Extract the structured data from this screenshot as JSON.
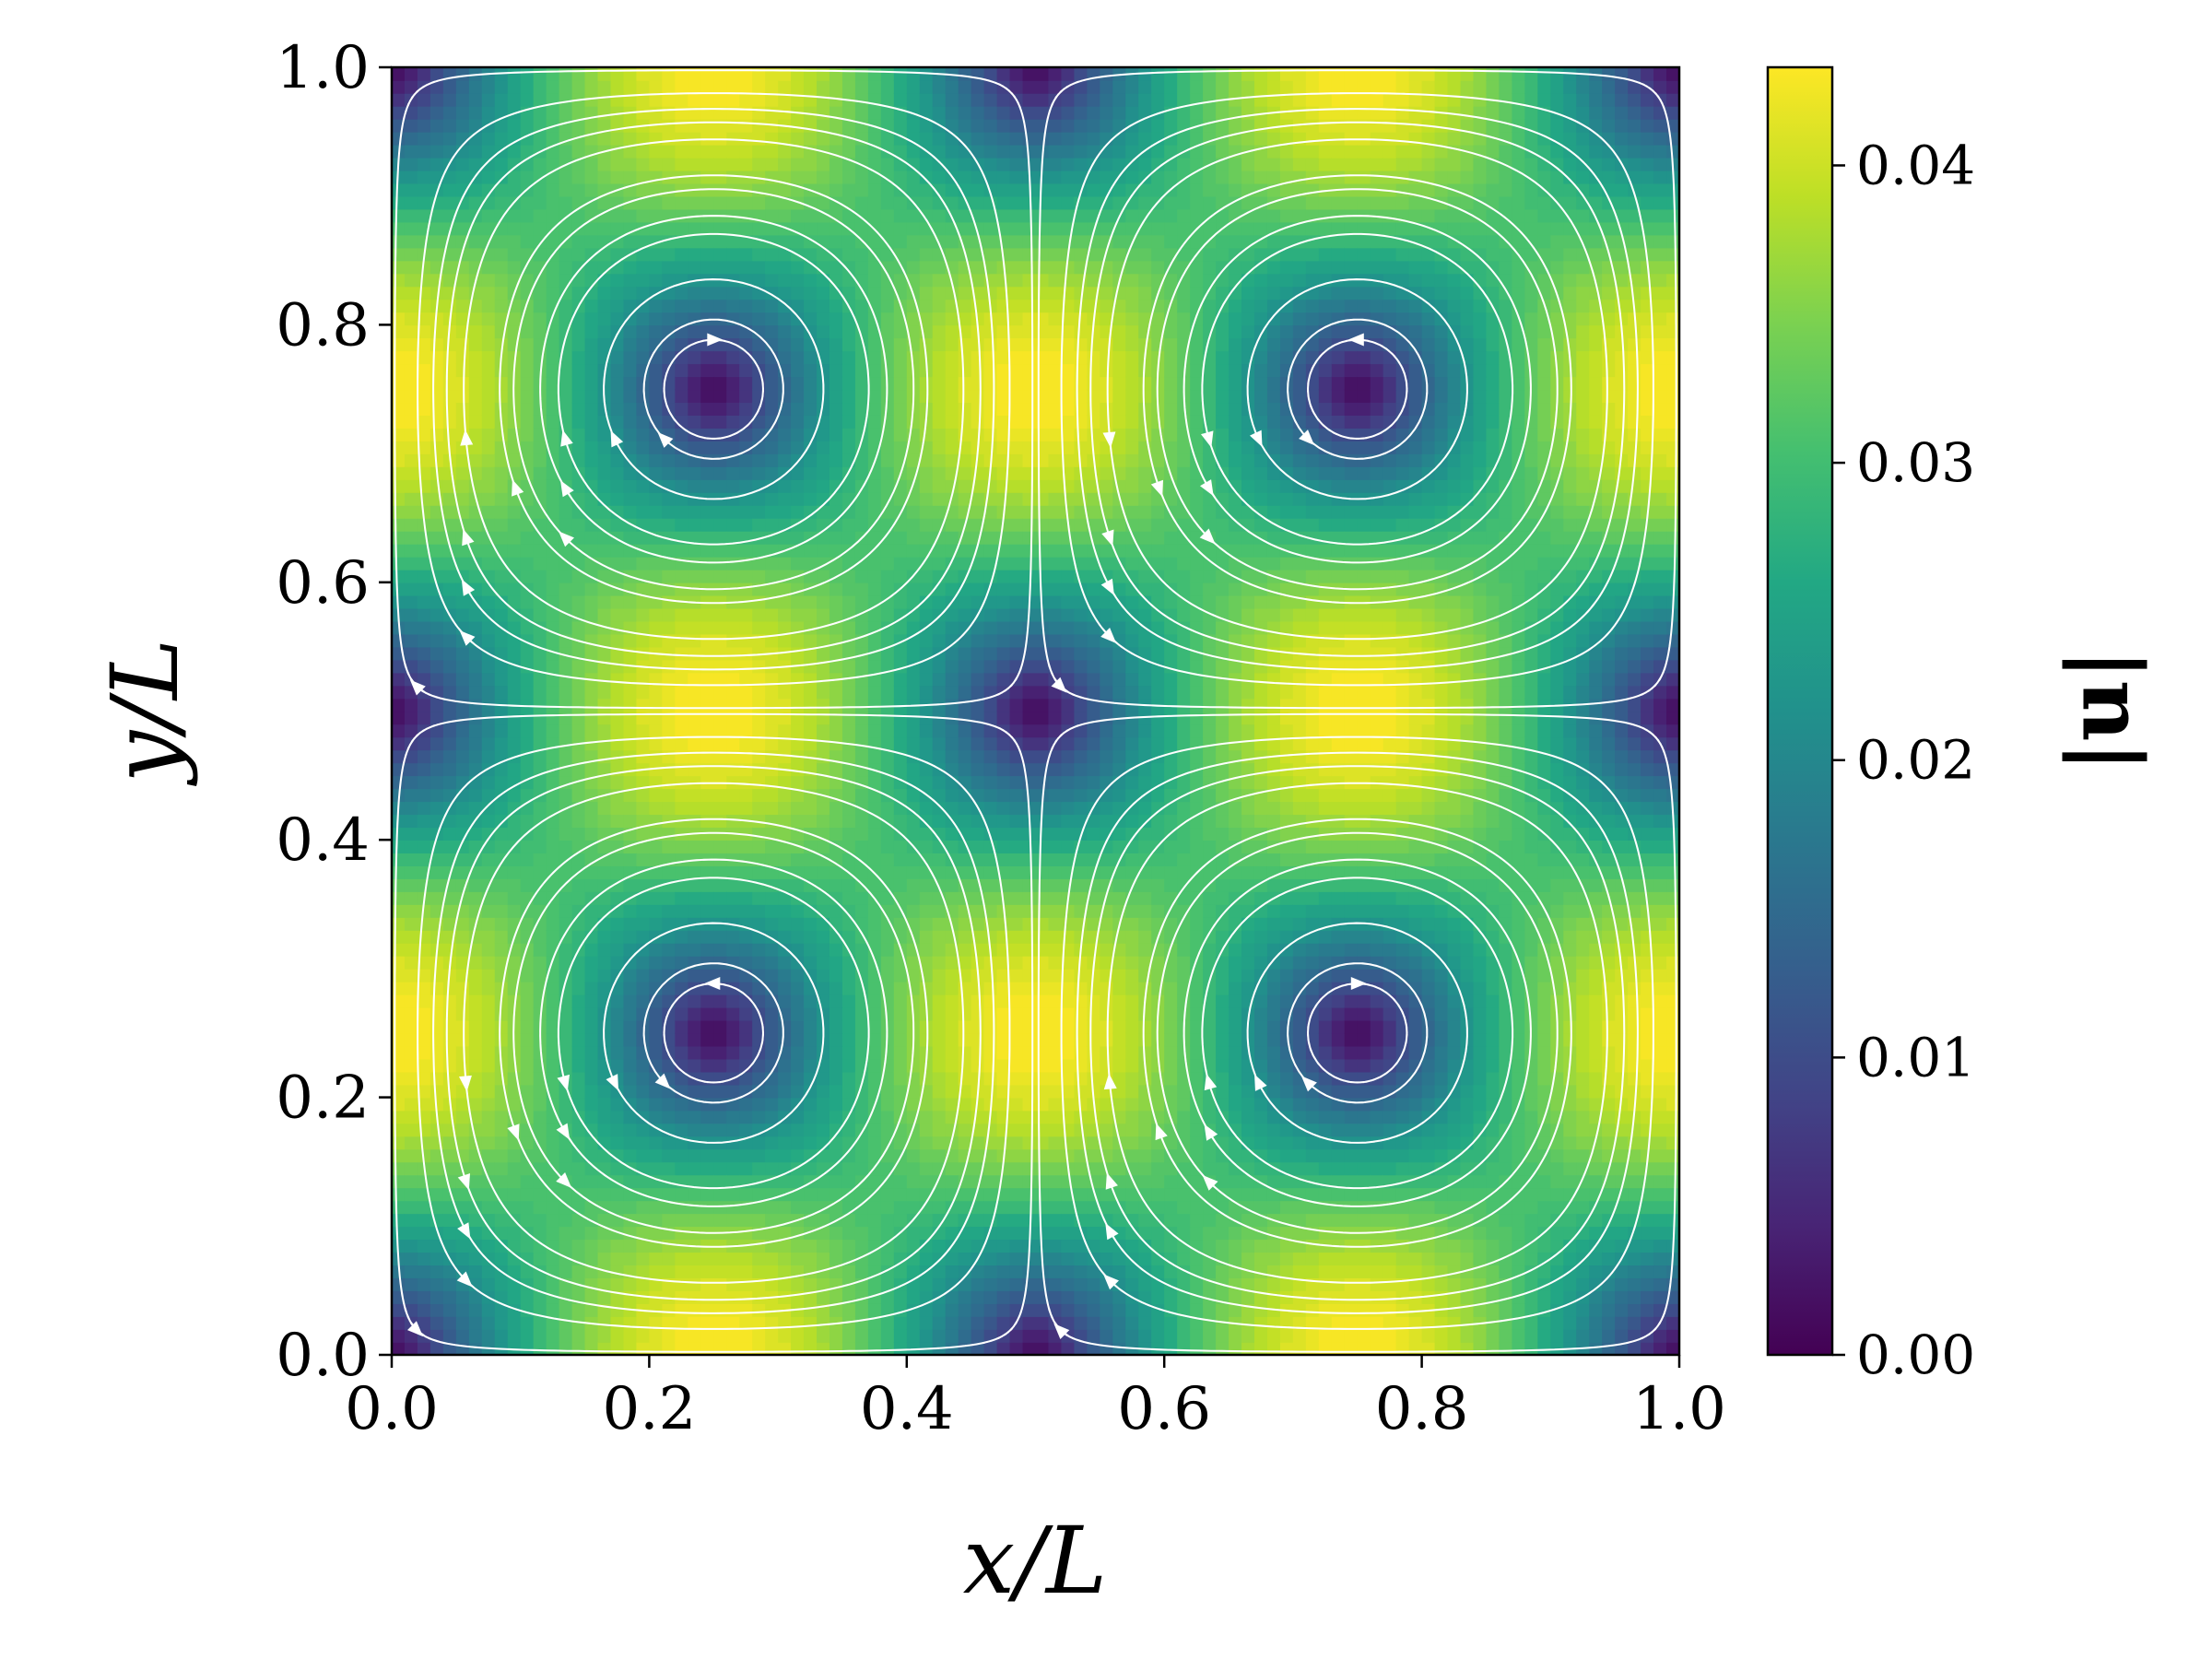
{
  "chart_data": {
    "type": "heatmap",
    "subtype": "filled contour with streamlines",
    "title": "",
    "xlabel": "x/L",
    "ylabel": "y/L",
    "xlim": [
      0.0,
      1.0
    ],
    "ylim": [
      0.0,
      1.0
    ],
    "xticks": [
      "0.0",
      "0.2",
      "0.4",
      "0.6",
      "0.8",
      "1.0"
    ],
    "yticks": [
      "0.0",
      "0.2",
      "0.4",
      "0.6",
      "0.8",
      "1.0"
    ],
    "colorbar": {
      "label": "|u|",
      "range": [
        0.0,
        0.0433
      ],
      "ticks": [
        "0.00",
        "0.01",
        "0.02",
        "0.03",
        "0.04"
      ],
      "colormap": "viridis",
      "levels": 50
    },
    "field": {
      "name": "|u|",
      "max": 0.0433,
      "min": 0.0,
      "minima_at": [
        [
          0.0,
          0.0
        ],
        [
          0.5,
          0.0
        ],
        [
          1.0,
          0.0
        ],
        [
          0.0,
          0.5
        ],
        [
          0.5,
          0.5
        ],
        [
          1.0,
          0.5
        ],
        [
          0.0,
          1.0
        ],
        [
          0.5,
          1.0
        ],
        [
          1.0,
          1.0
        ],
        [
          0.25,
          0.25
        ],
        [
          0.75,
          0.25
        ],
        [
          0.25,
          0.75
        ],
        [
          0.75,
          0.75
        ]
      ],
      "vortex_centers": [
        [
          0.5,
          0.5
        ],
        [
          0.0,
          0.5
        ],
        [
          1.0,
          0.5
        ],
        [
          0.5,
          0.0
        ],
        [
          0.5,
          1.0
        ],
        [
          0.0,
          0.0
        ],
        [
          1.0,
          0.0
        ],
        [
          0.0,
          1.0
        ],
        [
          1.0,
          1.0
        ]
      ],
      "saddle_points": [
        [
          0.25,
          0.25
        ],
        [
          0.75,
          0.25
        ],
        [
          0.25,
          0.75
        ],
        [
          0.75,
          0.75
        ]
      ]
    },
    "streamline_color": "#ffffff",
    "grid": false
  }
}
